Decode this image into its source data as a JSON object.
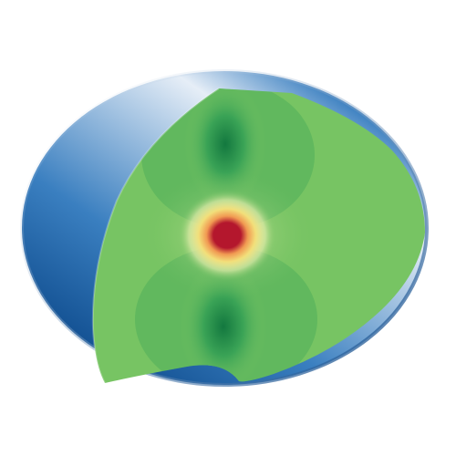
{
  "scene": {
    "subject": "cutaway-ellipsoid-field-visualization",
    "colors": {
      "background": "#ffffff",
      "shell_dark": "#0d4a8c",
      "shell_mid": "#3a7fc0",
      "shell_light": "#e6eef7",
      "section_base": "#77c463",
      "section_dark_lobe": "#13783f",
      "section_mid_green": "#3aa356",
      "core_light": "#f6f4b6",
      "core_yellow": "#f2df7a",
      "core_orange": "#f19a52",
      "core_red": "#b4172d"
    }
  }
}
